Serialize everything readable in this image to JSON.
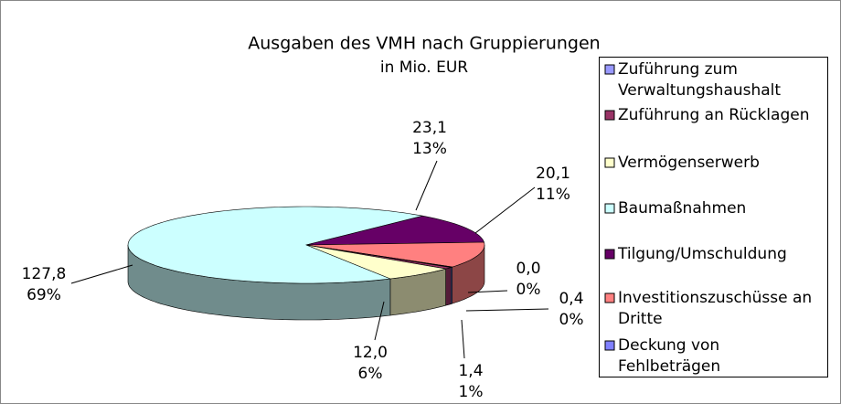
{
  "chart_data": {
    "type": "pie",
    "title": "Ausgaben des VMH nach Gruppierungen",
    "subtitle": "in Mio. EUR",
    "categories": [
      "Zuführung zum Verwaltungshaushalt",
      "Zuführung an Rücklagen",
      "Vermögenserwerb",
      "Baumaßnahmen",
      "Tilgung/Umschuldung",
      "Investitionszuschüsse an Dritte",
      "Deckung von Fehlbeträgen"
    ],
    "values": [
      0.4,
      1.4,
      12.0,
      127.8,
      23.1,
      20.1,
      0.0
    ],
    "value_labels": [
      "0,4",
      "1,4",
      "12,0",
      "127,8",
      "23,1",
      "20,1",
      "0,0"
    ],
    "percents": [
      0,
      1,
      6,
      69,
      13,
      11,
      0
    ],
    "percent_labels": [
      "0%",
      "1%",
      "6%",
      "69%",
      "13%",
      "11%",
      "0%"
    ],
    "colors": [
      "#9999ff",
      "#993366",
      "#ffffcc",
      "#ccffff",
      "#660066",
      "#ff8080",
      "#8080ff"
    ],
    "legend": "right"
  }
}
